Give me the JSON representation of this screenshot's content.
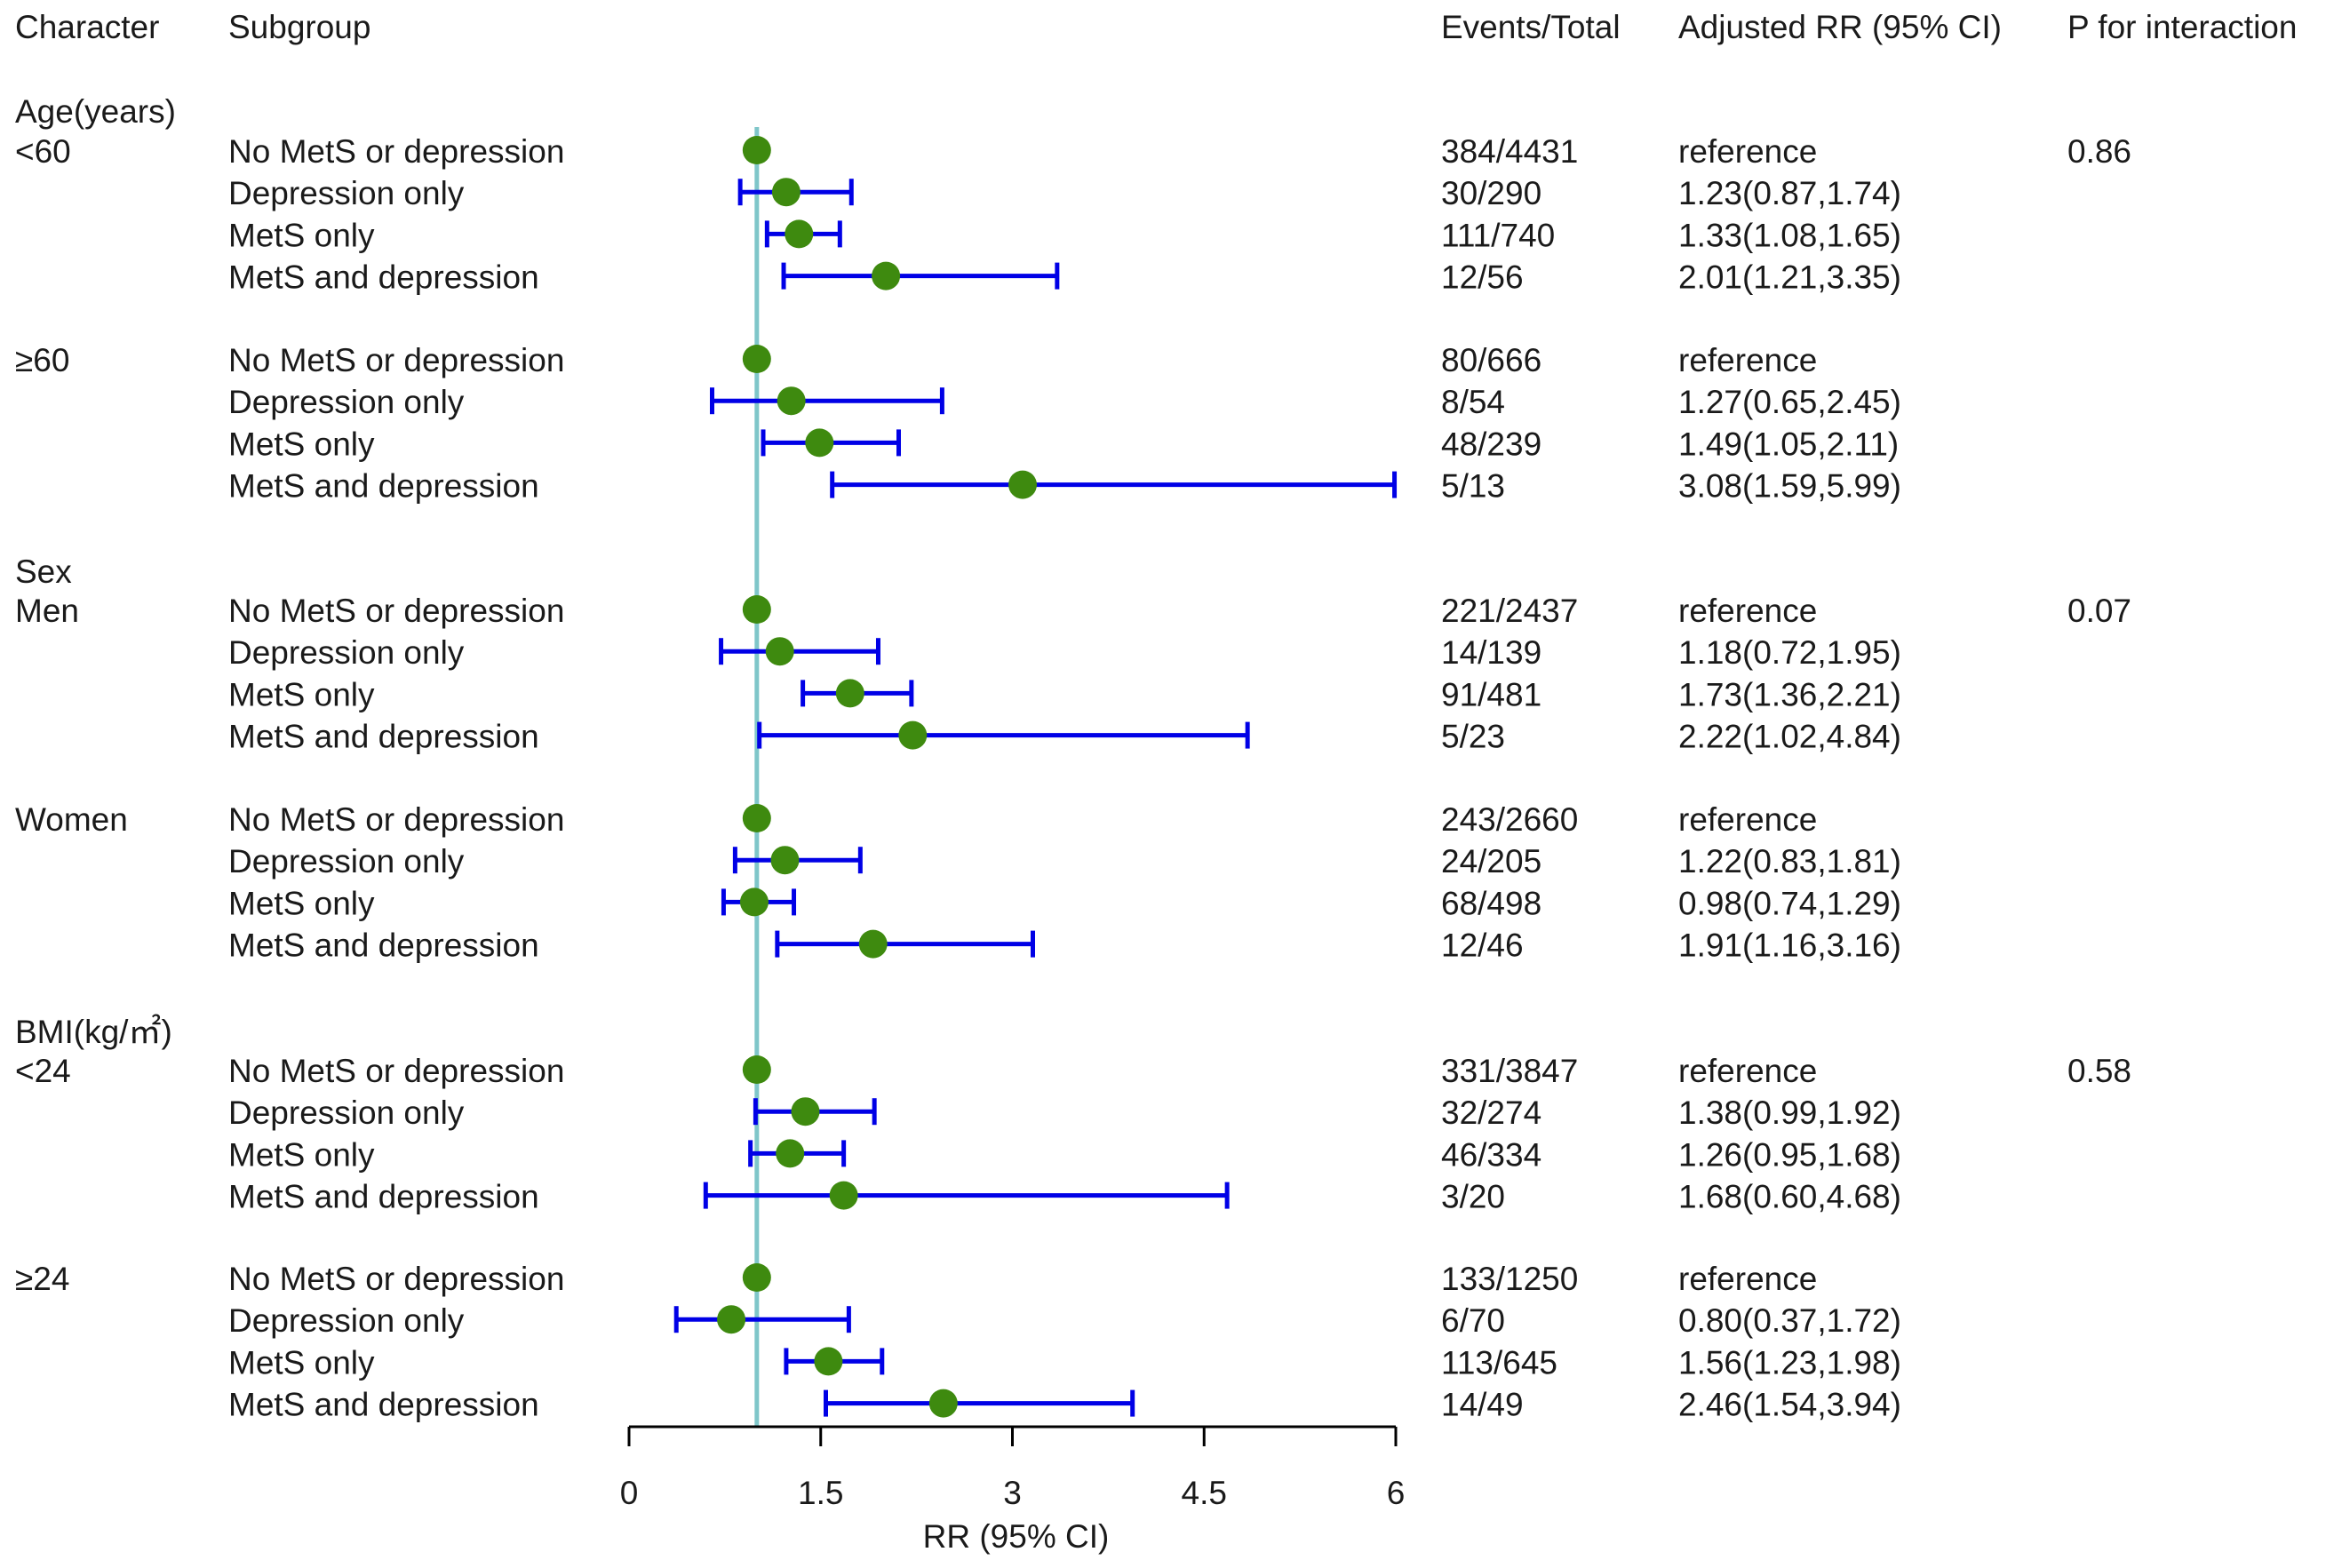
{
  "colors": {
    "ci_line": "#0000e6",
    "point": "#3e8a0f",
    "reference_line": "#7fc6c9",
    "axis": "#000000",
    "text": "#1a1a1a"
  },
  "headers": {
    "character": "Character",
    "subgroup": "Subgroup",
    "events_total": "Events/Total",
    "adjusted_rr": "Adjusted RR (95% CI)",
    "p_interaction": "P for interaction"
  },
  "chart_data": {
    "type": "forest",
    "xlabel": "RR (95% CI)",
    "xlim": [
      0,
      6
    ],
    "xticks": [
      0,
      1.5,
      3,
      4.5,
      6
    ],
    "xtick_labels": [
      "0",
      "1.5",
      "3",
      "4.5",
      "6"
    ],
    "reference_value": 1,
    "section_labels": [
      {
        "text": "Age(years)",
        "before_row": 0
      },
      {
        "text": "Sex",
        "before_row": 16
      },
      {
        "text": "BMI(kg/㎡)",
        "before_row": 32
      }
    ],
    "rows": [
      {
        "character": "<60",
        "subgroup": "No MetS or depression",
        "events": "384/4431",
        "rr_text": "reference",
        "p": "0.86",
        "rr": 1,
        "lower": null,
        "upper": null
      },
      {
        "character": "",
        "subgroup": "Depression only",
        "events": "30/290",
        "rr_text": "1.23(0.87,1.74)",
        "p": "",
        "rr": 1.23,
        "lower": 0.87,
        "upper": 1.74
      },
      {
        "character": "",
        "subgroup": "MetS only",
        "events": "111/740",
        "rr_text": "1.33(1.08,1.65)",
        "p": "",
        "rr": 1.33,
        "lower": 1.08,
        "upper": 1.65
      },
      {
        "character": "",
        "subgroup": "MetS and depression",
        "events": "12/56",
        "rr_text": "2.01(1.21,3.35)",
        "p": "",
        "rr": 2.01,
        "lower": 1.21,
        "upper": 3.35
      },
      {
        "character": "≥60",
        "subgroup": "No MetS or depression",
        "events": "80/666",
        "rr_text": "reference",
        "p": "",
        "rr": 1,
        "lower": null,
        "upper": null
      },
      {
        "character": "",
        "subgroup": "Depression only",
        "events": "8/54",
        "rr_text": "1.27(0.65,2.45)",
        "p": "",
        "rr": 1.27,
        "lower": 0.65,
        "upper": 2.45
      },
      {
        "character": "",
        "subgroup": "MetS only",
        "events": "48/239",
        "rr_text": "1.49(1.05,2.11)",
        "p": "",
        "rr": 1.49,
        "lower": 1.05,
        "upper": 2.11
      },
      {
        "character": "",
        "subgroup": "MetS and depression",
        "events": "5/13",
        "rr_text": "3.08(1.59,5.99)",
        "p": "",
        "rr": 3.08,
        "lower": 1.59,
        "upper": 5.99
      },
      {
        "character": "Men",
        "subgroup": "No MetS or depression",
        "events": "221/2437",
        "rr_text": "reference",
        "p": "0.07",
        "rr": 1,
        "lower": null,
        "upper": null
      },
      {
        "character": "",
        "subgroup": "Depression only",
        "events": "14/139",
        "rr_text": "1.18(0.72,1.95)",
        "p": "",
        "rr": 1.18,
        "lower": 0.72,
        "upper": 1.95
      },
      {
        "character": "",
        "subgroup": "MetS only",
        "events": "91/481",
        "rr_text": "1.73(1.36,2.21)",
        "p": "",
        "rr": 1.73,
        "lower": 1.36,
        "upper": 2.21
      },
      {
        "character": "",
        "subgroup": "MetS and depression",
        "events": "5/23",
        "rr_text": "2.22(1.02,4.84)",
        "p": "",
        "rr": 2.22,
        "lower": 1.02,
        "upper": 4.84
      },
      {
        "character": "Women",
        "subgroup": "No MetS or depression",
        "events": "243/2660",
        "rr_text": "reference",
        "p": "",
        "rr": 1,
        "lower": null,
        "upper": null
      },
      {
        "character": "",
        "subgroup": "Depression only",
        "events": "24/205",
        "rr_text": "1.22(0.83,1.81)",
        "p": "",
        "rr": 1.22,
        "lower": 0.83,
        "upper": 1.81
      },
      {
        "character": "",
        "subgroup": "MetS only",
        "events": "68/498",
        "rr_text": "0.98(0.74,1.29)",
        "p": "",
        "rr": 0.98,
        "lower": 0.74,
        "upper": 1.29
      },
      {
        "character": "",
        "subgroup": "MetS and depression",
        "events": "12/46",
        "rr_text": "1.91(1.16,3.16)",
        "p": "",
        "rr": 1.91,
        "lower": 1.16,
        "upper": 3.16
      },
      {
        "character": "<24",
        "subgroup": "No MetS or depression",
        "events": "331/3847",
        "rr_text": "reference",
        "p": "0.58",
        "rr": 1,
        "lower": null,
        "upper": null
      },
      {
        "character": "",
        "subgroup": "Depression only",
        "events": "32/274",
        "rr_text": "1.38(0.99,1.92)",
        "p": "",
        "rr": 1.38,
        "lower": 0.99,
        "upper": 1.92
      },
      {
        "character": "",
        "subgroup": "MetS only",
        "events": "46/334",
        "rr_text": "1.26(0.95,1.68)",
        "p": "",
        "rr": 1.26,
        "lower": 0.95,
        "upper": 1.68
      },
      {
        "character": "",
        "subgroup": "MetS and depression",
        "events": "3/20",
        "rr_text": "1.68(0.60,4.68)",
        "p": "",
        "rr": 1.68,
        "lower": 0.6,
        "upper": 4.68
      },
      {
        "character": "≥24",
        "subgroup": "No MetS or depression",
        "events": "133/1250",
        "rr_text": "reference",
        "p": "",
        "rr": 1,
        "lower": null,
        "upper": null
      },
      {
        "character": "",
        "subgroup": "Depression only",
        "events": "6/70",
        "rr_text": "0.80(0.37,1.72)",
        "p": "",
        "rr": 0.8,
        "lower": 0.37,
        "upper": 1.72
      },
      {
        "character": "",
        "subgroup": "MetS only",
        "events": "113/645",
        "rr_text": "1.56(1.23,1.98)",
        "p": "",
        "rr": 1.56,
        "lower": 1.23,
        "upper": 1.98
      },
      {
        "character": "",
        "subgroup": "MetS and depression",
        "events": "14/49",
        "rr_text": "2.46(1.54,3.94)",
        "p": "",
        "rr": 2.46,
        "lower": 1.54,
        "upper": 3.94
      }
    ]
  }
}
